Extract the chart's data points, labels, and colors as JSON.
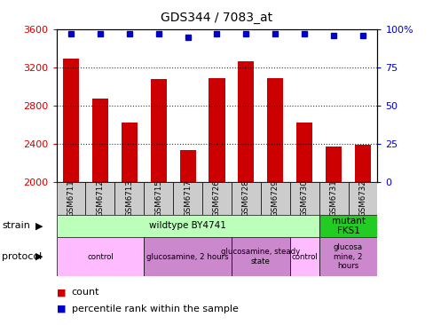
{
  "title": "GDS344 / 7083_at",
  "samples": [
    "GSM6711",
    "GSM6712",
    "GSM6713",
    "GSM6715",
    "GSM6717",
    "GSM6726",
    "GSM6728",
    "GSM6729",
    "GSM6730",
    "GSM6731",
    "GSM6732"
  ],
  "counts": [
    3290,
    2870,
    2620,
    3080,
    2330,
    3090,
    3260,
    3090,
    2620,
    2370,
    2390
  ],
  "percentiles": [
    97,
    97,
    97,
    97,
    95,
    97,
    97,
    97,
    97,
    96,
    96
  ],
  "ylim_left": [
    2000,
    3600
  ],
  "ylim_right": [
    0,
    100
  ],
  "yticks_left": [
    2000,
    2400,
    2800,
    3200,
    3600
  ],
  "yticks_right": [
    0,
    25,
    50,
    75,
    100
  ],
  "bar_color": "#cc0000",
  "dot_color": "#0000cc",
  "grid_lines": [
    3200,
    2800,
    2400
  ],
  "strain_groups": [
    {
      "label": "wildtype BY4741",
      "start": 0,
      "end": 9,
      "color": "#bbffbb"
    },
    {
      "label": "mutant\nFKS1",
      "start": 9,
      "end": 11,
      "color": "#22cc22"
    }
  ],
  "protocol_groups": [
    {
      "label": "control",
      "start": 0,
      "end": 3,
      "color": "#ffbbff"
    },
    {
      "label": "glucosamine, 2 hours",
      "start": 3,
      "end": 6,
      "color": "#cc88cc"
    },
    {
      "label": "glucosamine, steady\nstate",
      "start": 6,
      "end": 8,
      "color": "#cc88cc"
    },
    {
      "label": "control",
      "start": 8,
      "end": 9,
      "color": "#ffbbff"
    },
    {
      "label": "glucosa\nmine, 2\nhours",
      "start": 9,
      "end": 11,
      "color": "#cc88cc"
    }
  ],
  "bar_color_left": "#cc0000",
  "bar_color_right": "#0000cc",
  "sample_box_color": "#cccccc"
}
